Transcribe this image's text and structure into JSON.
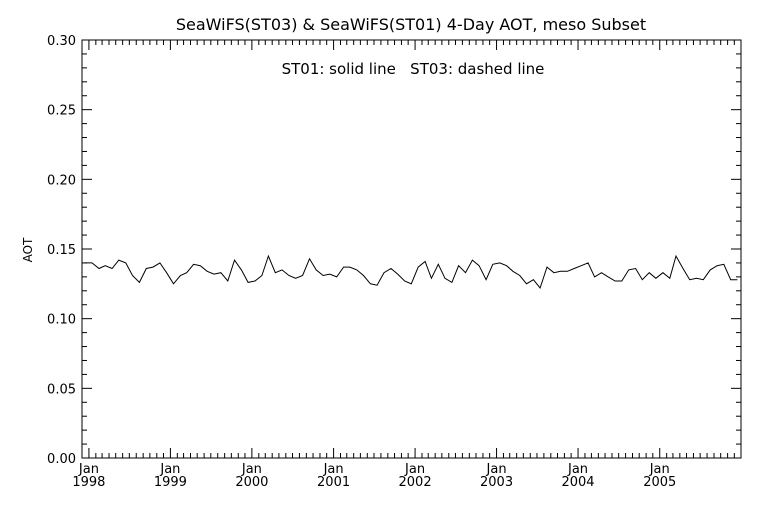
{
  "chart_data": {
    "type": "line",
    "title": "SeaWiFS(ST03) & SeaWiFS(ST01) 4-Day AOT, meso Subset",
    "annotation": "ST01: solid line   ST03: dashed line",
    "xlabel": "",
    "ylabel": "AOT",
    "ylim": [
      0.0,
      0.3
    ],
    "xlim": [
      "1997-12-01",
      "2005-12-31"
    ],
    "grid": false,
    "y_ticks": [
      "0.00",
      "0.05",
      "0.10",
      "0.15",
      "0.20",
      "0.25",
      "0.30"
    ],
    "x_ticks": [
      {
        "month": "Jan",
        "year": "1998",
        "date": "1998-01-01"
      },
      {
        "month": "Jan",
        "year": "1999",
        "date": "1999-01-01"
      },
      {
        "month": "Jan",
        "year": "2000",
        "date": "2000-01-01"
      },
      {
        "month": "Jan",
        "year": "2001",
        "date": "2001-01-01"
      },
      {
        "month": "Jan",
        "year": "2002",
        "date": "2002-01-01"
      },
      {
        "month": "Jan",
        "year": "2003",
        "date": "2003-01-01"
      },
      {
        "month": "Jan",
        "year": "2004",
        "date": "2004-01-01"
      },
      {
        "month": "Jan",
        "year": "2005",
        "date": "2005-01-01"
      }
    ],
    "series": [
      {
        "style": "solid",
        "color": "#000000",
        "x": [
          "1997-12",
          "1998-01",
          "1998-02",
          "1998-03",
          "1998-04",
          "1998-05",
          "1998-06",
          "1998-07",
          "1998-08",
          "1998-09",
          "1998-10",
          "1998-11",
          "1998-12",
          "1999-01",
          "1999-02",
          "1999-03",
          "1999-04",
          "1999-05",
          "1999-06",
          "1999-07",
          "1999-08",
          "1999-09",
          "1999-10",
          "1999-11",
          "1999-12",
          "2000-01",
          "2000-02",
          "2000-03",
          "2000-04",
          "2000-05",
          "2000-06",
          "2000-07",
          "2000-08",
          "2000-09",
          "2000-10",
          "2000-11",
          "2000-12",
          "2001-01",
          "2001-02",
          "2001-03",
          "2001-04",
          "2001-05",
          "2001-06",
          "2001-07",
          "2001-08",
          "2001-09",
          "2001-10",
          "2001-11",
          "2001-12",
          "2002-01",
          "2002-02",
          "2002-03",
          "2002-04",
          "2002-05",
          "2002-06",
          "2002-07",
          "2002-08",
          "2002-09",
          "2002-10",
          "2002-11",
          "2002-12",
          "2003-01",
          "2003-02",
          "2003-03",
          "2003-04",
          "2003-05",
          "2003-06",
          "2003-07",
          "2003-08",
          "2003-09",
          "2003-10",
          "2003-11",
          "2003-12",
          "2004-01",
          "2004-02",
          "2004-03",
          "2004-04",
          "2004-05",
          "2004-06",
          "2004-07",
          "2004-08",
          "2004-09",
          "2004-10",
          "2004-11",
          "2004-12",
          "2005-01",
          "2005-02",
          "2005-03",
          "2005-04",
          "2005-05",
          "2005-06",
          "2005-07",
          "2005-08",
          "2005-09",
          "2005-10",
          "2005-11",
          "2005-12"
        ],
        "y": [
          0.14,
          0.14,
          0.136,
          0.138,
          0.136,
          0.142,
          0.14,
          0.131,
          0.126,
          0.136,
          0.137,
          0.14,
          0.133,
          0.125,
          0.131,
          0.133,
          0.139,
          0.138,
          0.134,
          0.132,
          0.133,
          0.127,
          0.142,
          0.135,
          0.126,
          0.127,
          0.131,
          0.145,
          0.133,
          0.135,
          0.131,
          0.129,
          0.131,
          0.143,
          0.135,
          0.131,
          0.132,
          0.13,
          0.137,
          0.137,
          0.135,
          0.131,
          0.125,
          0.124,
          0.133,
          0.136,
          0.132,
          0.127,
          0.125,
          0.137,
          0.141,
          0.129,
          0.139,
          0.129,
          0.126,
          0.138,
          0.133,
          0.142,
          0.138,
          0.128,
          0.139,
          0.14,
          0.138,
          0.134,
          0.131,
          0.125,
          0.128,
          0.122,
          0.137,
          0.133,
          0.134,
          0.134,
          0.136,
          0.138,
          0.14,
          0.13,
          0.133,
          0.13,
          0.127,
          0.127,
          0.135,
          0.136,
          0.128,
          0.133,
          0.129,
          0.133,
          0.129,
          0.145,
          0.136,
          0.128,
          0.129,
          0.128,
          0.135,
          0.138,
          0.139,
          0.128,
          0.128
        ]
      }
    ]
  }
}
